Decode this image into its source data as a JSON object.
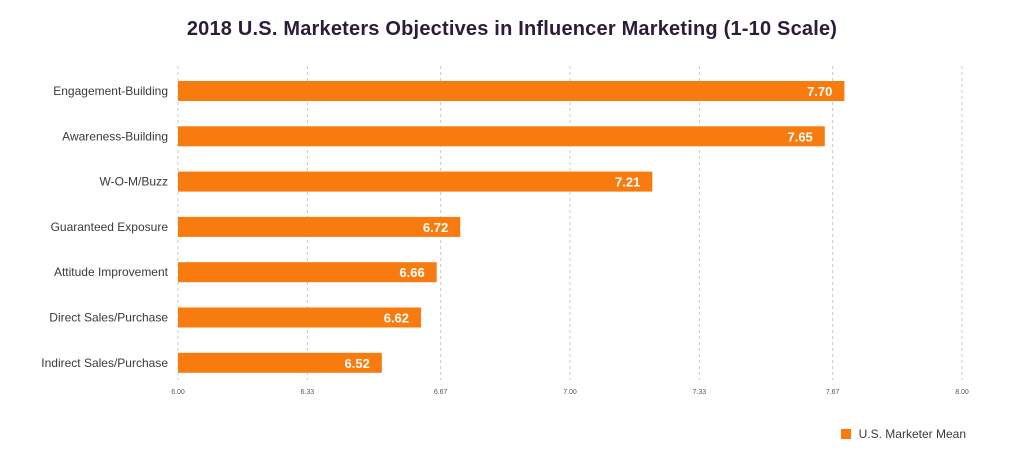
{
  "chart_data": {
    "type": "bar",
    "orientation": "horizontal",
    "title": "2018 U.S. Marketers Objectives in Influencer Marketing (1-10 Scale)",
    "categories": [
      "Engagement-Building",
      "Awareness-Building",
      "W-O-M/Buzz",
      "Guaranteed Exposure",
      "Attitude Improvement",
      "Direct Sales/Purchase",
      "Indirect Sales/Purchase"
    ],
    "series": [
      {
        "name": "U.S. Marketer Mean",
        "values": [
          7.7,
          7.65,
          7.21,
          6.72,
          6.66,
          6.62,
          6.52
        ],
        "value_labels": [
          "7.70",
          "7.65",
          "7.21",
          "6.72",
          "6.66",
          "6.62",
          "6.52"
        ],
        "color": "#f77b0f"
      }
    ],
    "xlim": [
      6.0,
      8.0
    ],
    "ticks": [
      6.0,
      6.33,
      6.67,
      7.0,
      7.33,
      7.67,
      8.0
    ],
    "tick_labels": [
      "6.00",
      "6.33",
      "6.67",
      "7.00",
      "7.33",
      "7.67",
      "8.00"
    ],
    "grid": true,
    "grid_style": "dashed",
    "legend_position": "bottom-right"
  }
}
